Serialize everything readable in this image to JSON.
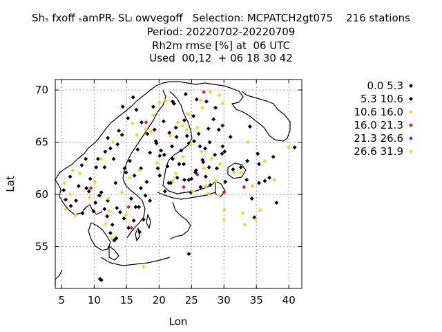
{
  "title": {
    "line1": "Shₛ fxoff ₛamPRᵣ SLₗ owvegoff   Selection: MCPATCH2gt075    216 stations",
    "line2": "Period: 20220702-20220709",
    "line3": "Rh2m rmse [%] at  06 UTC",
    "line4": "Used  00,12  + 06 18 30 42"
  },
  "chart_data": {
    "type": "scatter",
    "xlabel": "Lon",
    "ylabel": "Lat",
    "xlim": [
      4,
      42
    ],
    "ylim": [
      51,
      71
    ],
    "xticks": [
      5,
      10,
      15,
      20,
      25,
      30,
      35,
      40
    ],
    "yticks": [
      55,
      60,
      65,
      70
    ],
    "grid": true,
    "legend_position": "right",
    "series": [
      {
        "name": "0.0 5.3",
        "color": "#000000",
        "points": [
          [
            24.1,
            69.6
          ],
          [
            25.8,
            69.1
          ],
          [
            27.3,
            68.9
          ],
          [
            22.3,
            68.7
          ],
          [
            28.7,
            68.3
          ],
          [
            19.1,
            68.4
          ],
          [
            25.3,
            67.5
          ],
          [
            23.9,
            67.1
          ],
          [
            20.7,
            67.0
          ],
          [
            27.6,
            66.3
          ],
          [
            29.2,
            66.2
          ],
          [
            21.6,
            65.9
          ],
          [
            25.4,
            65.1
          ],
          [
            24.6,
            64.9
          ],
          [
            22.0,
            64.6
          ],
          [
            27.1,
            64.4
          ],
          [
            29.7,
            63.9
          ],
          [
            26.8,
            63.1
          ],
          [
            23.1,
            62.9
          ],
          [
            25.7,
            62.3
          ],
          [
            25.0,
            61.5
          ],
          [
            23.9,
            61.4
          ],
          [
            21.5,
            61.1
          ],
          [
            27.9,
            60.9
          ],
          [
            24.9,
            60.2
          ],
          [
            12.5,
            64.4
          ],
          [
            15.5,
            63.2
          ],
          [
            14.7,
            62.5
          ],
          [
            13.3,
            61.1
          ],
          [
            17.2,
            60.6
          ],
          [
            18.6,
            59.4
          ],
          [
            16.4,
            58.8
          ],
          [
            14.6,
            57.7
          ],
          [
            12.8,
            57.1
          ],
          [
            13.4,
            55.8
          ],
          [
            17.6,
            57.6
          ],
          [
            10.9,
            51.9
          ],
          [
            11.1,
            51.8
          ],
          [
            24.6,
            54.3
          ],
          [
            38.1,
            59.2
          ],
          [
            40.9,
            64.5
          ],
          [
            35.4,
            62.9
          ],
          [
            34.3,
            59.6
          ],
          [
            32.6,
            62.6
          ],
          [
            22.6,
            66.4
          ],
          [
            18.6,
            64.0
          ],
          [
            20.1,
            63.7
          ],
          [
            16.2,
            61.8
          ],
          [
            12.1,
            59.4
          ],
          [
            8.7,
            63.4
          ]
        ]
      },
      {
        "name": "5.3 10.6",
        "color": "#000000",
        "points": [
          [
            16.0,
            69.3
          ],
          [
            14.4,
            68.4
          ],
          [
            15.2,
            67.3
          ],
          [
            13.8,
            66.1
          ],
          [
            12.1,
            65.4
          ],
          [
            17.3,
            66.9
          ],
          [
            19.5,
            65.1
          ],
          [
            20.3,
            64.2
          ],
          [
            16.7,
            64.3
          ],
          [
            14.9,
            62.1
          ],
          [
            11.6,
            62.6
          ],
          [
            10.6,
            63.4
          ],
          [
            8.1,
            62.8
          ],
          [
            6.3,
            61.7
          ],
          [
            7.6,
            60.8
          ],
          [
            9.2,
            60.3
          ],
          [
            10.8,
            59.9
          ],
          [
            11.6,
            58.6
          ],
          [
            8.2,
            58.2
          ],
          [
            6.4,
            58.9
          ],
          [
            5.6,
            59.5
          ],
          [
            5.3,
            60.4
          ],
          [
            10.2,
            59.2
          ],
          [
            12.5,
            56.3
          ],
          [
            13.1,
            55.6
          ],
          [
            15.3,
            56.8
          ],
          [
            14.0,
            58.3
          ],
          [
            15.7,
            59.6
          ],
          [
            16.9,
            58.8
          ],
          [
            17.9,
            59.9
          ],
          [
            18.1,
            61.2
          ],
          [
            19.8,
            62.5
          ],
          [
            21.3,
            62.7
          ],
          [
            20.8,
            63.8
          ],
          [
            22.1,
            63.4
          ],
          [
            23.4,
            64.2
          ],
          [
            24.3,
            65.6
          ],
          [
            26.1,
            65.8
          ],
          [
            27.8,
            65.0
          ],
          [
            29.8,
            64.6
          ],
          [
            28.9,
            62.5
          ],
          [
            30.2,
            61.2
          ],
          [
            27.2,
            61.7
          ],
          [
            26.4,
            60.7
          ],
          [
            24.6,
            61.4
          ],
          [
            22.8,
            61.6
          ],
          [
            20.9,
            60.3
          ],
          [
            29.8,
            66.6
          ],
          [
            30.1,
            64.1
          ],
          [
            31.0,
            65.5
          ],
          [
            34.0,
            66.5
          ],
          [
            33.6,
            63.2
          ],
          [
            35.2,
            63.9
          ],
          [
            36.3,
            61.3
          ],
          [
            37.0,
            61.6
          ],
          [
            35.4,
            61.1
          ],
          [
            28.6,
            63.8
          ],
          [
            26.3,
            64.6
          ],
          [
            27.7,
            62.6
          ],
          [
            25.6,
            62.1
          ],
          [
            23.8,
            62.9
          ],
          [
            21.8,
            61.1
          ],
          [
            20.1,
            61.8
          ],
          [
            17.2,
            62.5
          ],
          [
            19.6,
            64.9
          ],
          [
            18.2,
            65.8
          ],
          [
            14.3,
            65.7
          ],
          [
            13.6,
            64.8
          ],
          [
            13.0,
            63.4
          ],
          [
            11.7,
            64.1
          ],
          [
            10.3,
            62.6
          ],
          [
            9.4,
            61.5
          ],
          [
            8.8,
            60.6
          ],
          [
            7.2,
            59.4
          ],
          [
            9.9,
            58.4
          ],
          [
            12.0,
            57.9
          ],
          [
            16.1,
            57.5
          ],
          [
            17.0,
            56.4
          ],
          [
            13.5,
            58.7
          ],
          [
            22.1,
            68.9
          ],
          [
            16.5,
            68.1
          ],
          [
            28.4,
            67.2
          ],
          [
            19.3,
            66.2
          ],
          [
            22.7,
            65.5
          ],
          [
            26.7,
            63.3
          ],
          [
            31.4,
            62.4
          ],
          [
            33.5,
            61.4
          ],
          [
            37.6,
            63.6
          ],
          [
            34.7,
            57.8
          ],
          [
            11.1,
            60.2
          ]
        ]
      },
      {
        "name": "10.6 16.0",
        "color": "#e6d93a",
        "points": [
          [
            27.9,
            69.8
          ],
          [
            29.3,
            69.5
          ],
          [
            26.4,
            69.0
          ],
          [
            20.1,
            68.8
          ],
          [
            21.0,
            69.0
          ],
          [
            29.8,
            68.7
          ],
          [
            26.7,
            68.3
          ],
          [
            24.5,
            67.7
          ],
          [
            22.9,
            66.9
          ],
          [
            23.6,
            66.6
          ],
          [
            25.9,
            66.4
          ],
          [
            24.3,
            66.2
          ],
          [
            21.7,
            65.6
          ],
          [
            24.9,
            64.8
          ],
          [
            26.6,
            64.1
          ],
          [
            28.1,
            63.4
          ],
          [
            29.4,
            62.9
          ],
          [
            22.6,
            62.0
          ],
          [
            22.1,
            61.3
          ],
          [
            25.2,
            60.3
          ],
          [
            27.6,
            60.1
          ],
          [
            29.1,
            59.9
          ],
          [
            30.1,
            58.5
          ],
          [
            30.0,
            57.6
          ],
          [
            32.9,
            58.2
          ],
          [
            33.2,
            57.1
          ],
          [
            35.6,
            58.5
          ],
          [
            34.9,
            57.6
          ],
          [
            34.4,
            60.8
          ],
          [
            32.6,
            62.1
          ],
          [
            33.7,
            65.0
          ],
          [
            37.8,
            61.4
          ],
          [
            40.0,
            64.5
          ],
          [
            36.3,
            63.2
          ],
          [
            31.6,
            62.1
          ],
          [
            26.9,
            62.5
          ],
          [
            23.7,
            63.6
          ],
          [
            19.7,
            63.0
          ],
          [
            16.6,
            65.7
          ],
          [
            19.1,
            67.6
          ],
          [
            17.9,
            66.2
          ],
          [
            17.0,
            62.3
          ],
          [
            15.5,
            61.6
          ],
          [
            14.3,
            60.2
          ],
          [
            12.4,
            58.4
          ],
          [
            11.8,
            57.2
          ],
          [
            14.9,
            58.0
          ],
          [
            12.7,
            55.8
          ],
          [
            17.6,
            53.1
          ],
          [
            9.3,
            59.7
          ],
          [
            7.1,
            58.0
          ],
          [
            5.6,
            58.6
          ],
          [
            6.3,
            60.0
          ],
          [
            5.4,
            61.1
          ],
          [
            7.8,
            62.0
          ],
          [
            10.1,
            61.2
          ],
          [
            11.1,
            63.4
          ],
          [
            12.9,
            65.0
          ],
          [
            15.9,
            66.8
          ],
          [
            18.8,
            66.0
          ],
          [
            27.2,
            60.8
          ],
          [
            28.7,
            61.3
          ]
        ]
      },
      {
        "name": "16.0 21.3",
        "color": "#e02a10",
        "points": [
          [
            26.9,
            69.8
          ],
          [
            18.0,
            66.9
          ],
          [
            9.5,
            60.6
          ],
          [
            15.3,
            58.8
          ],
          [
            15.7,
            56.8
          ],
          [
            23.8,
            60.7
          ],
          [
            33.1,
            60.7
          ],
          [
            30.0,
            60.2
          ]
        ]
      },
      {
        "name": "21.3 26.6",
        "color": "#8a20d6",
        "points": [
          [
            25.9,
            61.9
          ]
        ]
      },
      {
        "name": "26.6 31.9",
        "color": "#e6d93a",
        "points": [
          [
            6.7,
            62.3
          ],
          [
            12.2,
            59.6
          ]
        ]
      }
    ]
  }
}
